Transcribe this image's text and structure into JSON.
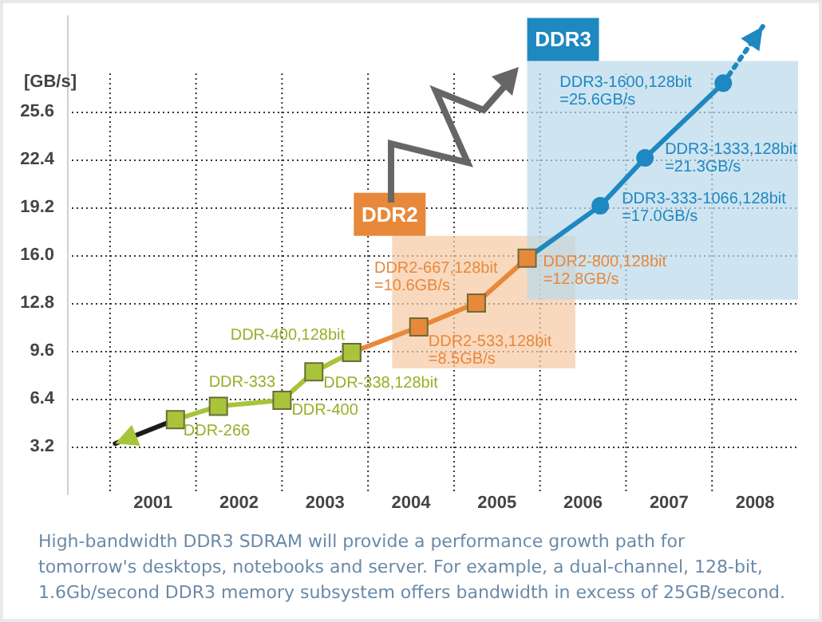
{
  "chart_data": {
    "type": "line",
    "ylabel": "[GB/s]",
    "xlim": [
      2000,
      2008.5
    ],
    "xticks": [
      {
        "value": 2000.5,
        "label": null
      },
      2001,
      {
        "value": 2001.5,
        "label": null
      },
      2002,
      {
        "value": 2002.5,
        "label": null
      },
      2003,
      {
        "value": 2003.5,
        "label": null
      },
      2004,
      {
        "value": 2004.5,
        "label": null
      },
      2005,
      {
        "value": 2005.5,
        "label": null
      },
      2006,
      {
        "value": 2006.5,
        "label": null
      },
      2007,
      {
        "value": 2007.5,
        "label": null
      },
      2008
    ],
    "ylim": [
      0,
      32
    ],
    "yticks": [
      3.2,
      6.4,
      9.6,
      12.8,
      {
        "value": 16,
        "label": "16.0"
      },
      19.2,
      22.4,
      25.6
    ],
    "grid": true,
    "series": [
      {
        "color": "#1a1a1a",
        "marker": "none",
        "x": [
          2000.56,
          2001.26
        ],
        "values": [
          3.4,
          5.0
        ]
      },
      {
        "color": "#e8883a",
        "marker": "square",
        "x": [
          2003.31,
          2004.09,
          2004.76,
          2005.35
        ],
        "values": [
          9.5,
          11.2,
          12.8,
          15.8
        ],
        "value_labels": [
          null,
          "DDR2-533,128bit\n=8.5GB/s",
          "DDR2-667,128bit\n=10.6GB/s",
          "DDR2-800,128bit\n=12.8GB/s"
        ]
      },
      {
        "color": "#1e88c0",
        "marker": "circle",
        "x": [
          2005.35,
          2006.2,
          2006.72,
          2007.63
        ],
        "values": [
          15.8,
          19.3,
          22.5,
          27.5
        ],
        "value_labels": [
          null,
          "DDR3-333-1066,128bit\n=17.0GB/s",
          "DDR3-1333,128bit\n=21.3GB/s",
          "DDR3-1600,128bit\n=25.6GB/s"
        ]
      },
      {
        "color": "#1e88c0",
        "marker": "none",
        "line_style": "dotted",
        "x": [
          2007.63,
          2008.09
        ],
        "values": [
          27.5,
          31.3
        ]
      },
      {
        "color": "#a8c43a",
        "marker": "square",
        "x": [
          2001.26,
          2001.76,
          2002.5,
          2002.87,
          2003.31
        ],
        "values": [
          5.0,
          5.9,
          6.3,
          8.2,
          9.5
        ],
        "value_labels": [
          "DDR-266",
          "DDR-333",
          "DDR-400",
          "DDR-338,128bit",
          "DDR-400,128bit"
        ]
      }
    ],
    "bands": [
      {
        "axis": "x",
        "from": 2003.78,
        "to": 2005.91,
        "label": "DDR2",
        "color": "#f7c9a3"
      },
      {
        "axis": "x",
        "from": 2005.35,
        "to": 2008.5,
        "label": "DDR3",
        "color": "#b9d9ea"
      }
    ],
    "annotations": [
      "High-bandwidth DDR3 SDRAM will provide a performance growth path for tomorrow's desktops, notebooks and server. For example, a dual-channel, 128-bit, 1.6Gb/second DDR3 memory subsystem offers bandwidth in excess of 25GB/second."
    ]
  }
}
